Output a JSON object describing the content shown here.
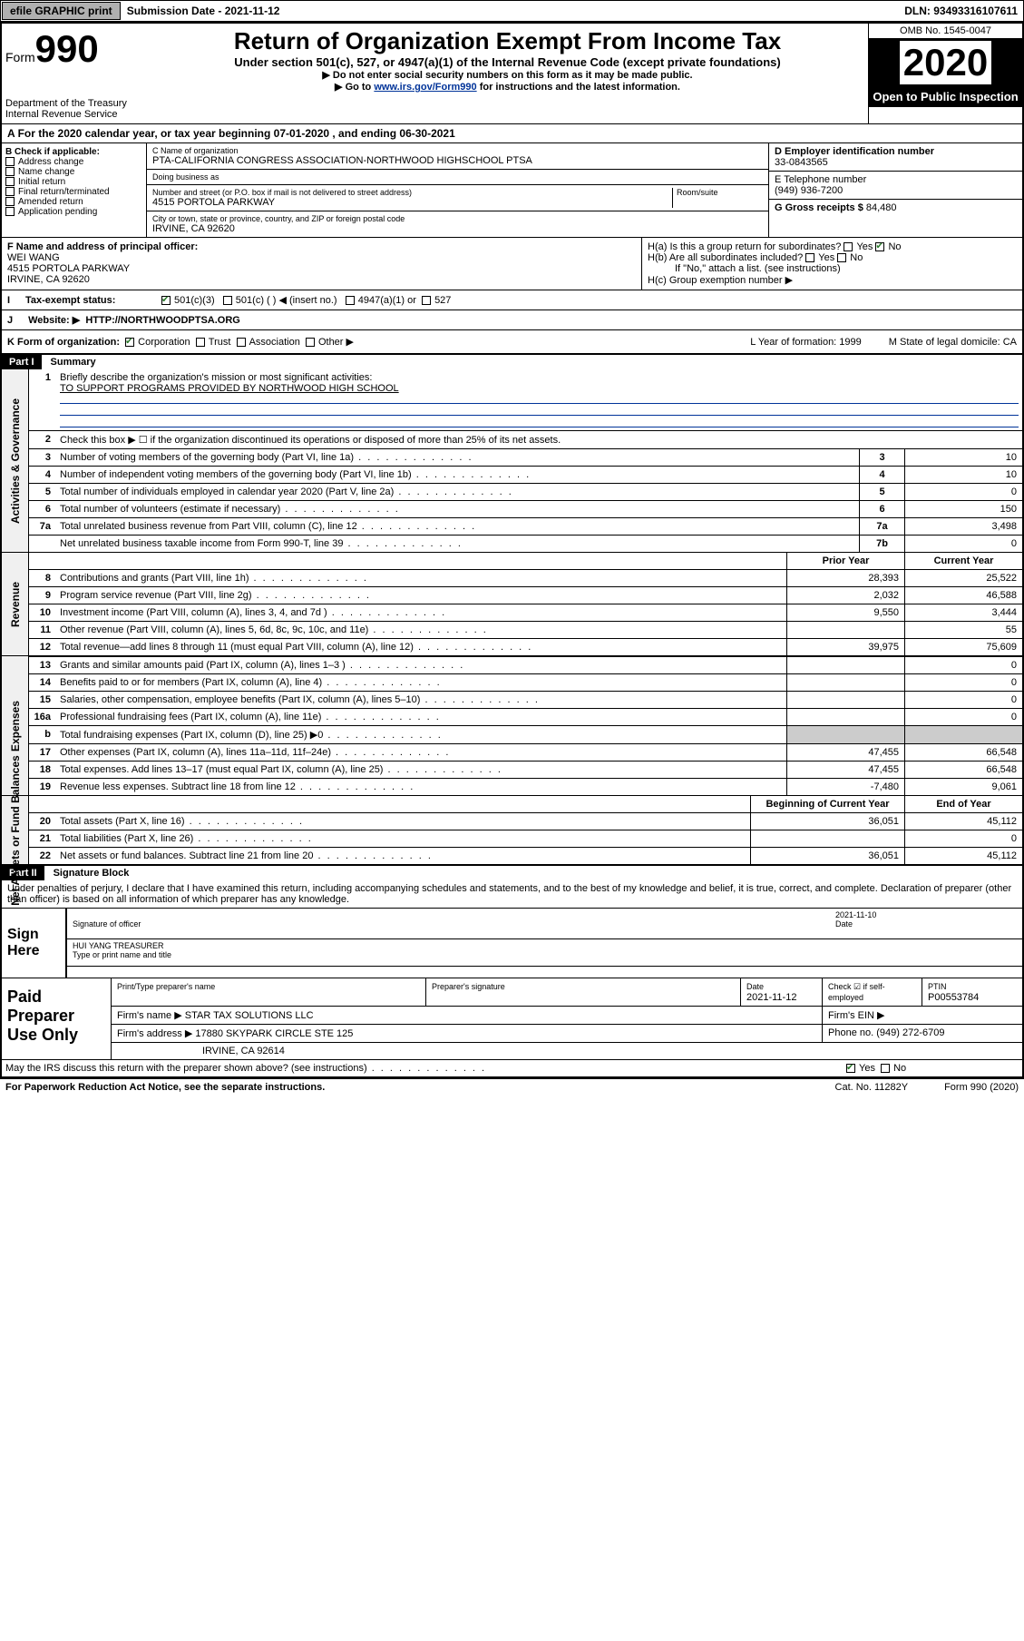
{
  "topbar": {
    "efile": "efile GRAPHIC print",
    "subdate_lbl": "Submission Date - ",
    "subdate": "2021-11-12",
    "dln_lbl": "DLN: ",
    "dln": "93493316107611"
  },
  "header": {
    "form": "Form",
    "formno": "990",
    "dept": "Department of the Treasury\nInternal Revenue Service",
    "title": "Return of Organization Exempt From Income Tax",
    "sub": "Under section 501(c), 527, or 4947(a)(1) of the Internal Revenue Code (except private foundations)",
    "nossn": "▶ Do not enter social security numbers on this form as it may be made public.",
    "goto_pre": "▶ Go to ",
    "goto_link": "www.irs.gov/Form990",
    "goto_post": " for instructions and the latest information.",
    "omb": "OMB No. 1545-0047",
    "year": "2020",
    "inspect": "Open to Public Inspection"
  },
  "period": "For the 2020 calendar year, or tax year beginning 07-01-2020    , and ending 06-30-2021",
  "B": {
    "hdr": "B Check if applicable:",
    "items": [
      "Address change",
      "Name change",
      "Initial return",
      "Final return/terminated",
      "Amended return",
      "Application pending"
    ]
  },
  "C": {
    "name_lbl": "C Name of organization",
    "name": "PTA-CALIFORNIA CONGRESS ASSOCIATION-NORTHWOOD HIGHSCHOOL PTSA",
    "dba_lbl": "Doing business as",
    "dba": "",
    "addr_lbl": "Number and street (or P.O. box if mail is not delivered to street address)",
    "room_lbl": "Room/suite",
    "addr": "4515 PORTOLA PARKWAY",
    "city_lbl": "City or town, state or province, country, and ZIP or foreign postal code",
    "city": "IRVINE, CA  92620"
  },
  "D": {
    "lbl": "D Employer identification number",
    "val": "33-0843565"
  },
  "E": {
    "lbl": "E Telephone number",
    "val": "(949) 936-7200"
  },
  "G": {
    "lbl": "G Gross receipts $ ",
    "val": "84,480"
  },
  "F": {
    "lbl": "F  Name and address of principal officer:",
    "name": "WEI WANG",
    "addr": "4515 PORTOLA PARKWAY",
    "city": "IRVINE, CA  92620"
  },
  "H": {
    "a": "H(a)  Is this a group return for subordinates?",
    "b": "H(b)  Are all subordinates included?",
    "bnote": "If \"No,\" attach a list. (see instructions)",
    "c": "H(c)  Group exemption number ▶",
    "yes": "Yes",
    "no": "No"
  },
  "I": {
    "lbl": "Tax-exempt status:",
    "opts": [
      "501(c)(3)",
      "501(c) (  ) ◀ (insert no.)",
      "4947(a)(1) or",
      "527"
    ]
  },
  "J": {
    "lbl": "Website: ▶",
    "val": "HTTP://NORTHWOODPTSA.ORG"
  },
  "K": {
    "lbl": "K Form of organization:",
    "opts": [
      "Corporation",
      "Trust",
      "Association",
      "Other ▶"
    ],
    "L": "L Year of formation: 1999",
    "M": "M State of legal domicile: CA"
  },
  "part1": {
    "bar": "Part I",
    "title": "Summary"
  },
  "summary": {
    "q1": "Briefly describe the organization's mission or most significant activities:",
    "q1a": "TO SUPPORT PROGRAMS PROVIDED BY NORTHWOOD HIGH SCHOOL",
    "q2": "Check this box ▶ ☐  if the organization discontinued its operations or disposed of more than 25% of its net assets.",
    "lines_ag": [
      {
        "n": "3",
        "d": "Number of voting members of the governing body (Part VI, line 1a)",
        "b": "3",
        "v": "10"
      },
      {
        "n": "4",
        "d": "Number of independent voting members of the governing body (Part VI, line 1b)",
        "b": "4",
        "v": "10"
      },
      {
        "n": "5",
        "d": "Total number of individuals employed in calendar year 2020 (Part V, line 2a)",
        "b": "5",
        "v": "0"
      },
      {
        "n": "6",
        "d": "Total number of volunteers (estimate if necessary)",
        "b": "6",
        "v": "150"
      },
      {
        "n": "7a",
        "d": "Total unrelated business revenue from Part VIII, column (C), line 12",
        "b": "7a",
        "v": "3,498"
      },
      {
        "n": "",
        "d": "Net unrelated business taxable income from Form 990-T, line 39",
        "b": "7b",
        "v": "0"
      }
    ],
    "hdr_prior": "Prior Year",
    "hdr_curr": "Current Year",
    "rev": [
      {
        "n": "8",
        "d": "Contributions and grants (Part VIII, line 1h)",
        "p": "28,393",
        "c": "25,522"
      },
      {
        "n": "9",
        "d": "Program service revenue (Part VIII, line 2g)",
        "p": "2,032",
        "c": "46,588"
      },
      {
        "n": "10",
        "d": "Investment income (Part VIII, column (A), lines 3, 4, and 7d )",
        "p": "9,550",
        "c": "3,444"
      },
      {
        "n": "11",
        "d": "Other revenue (Part VIII, column (A), lines 5, 6d, 8c, 9c, 10c, and 11e)",
        "p": "",
        "c": "55"
      },
      {
        "n": "12",
        "d": "Total revenue—add lines 8 through 11 (must equal Part VIII, column (A), line 12)",
        "p": "39,975",
        "c": "75,609"
      }
    ],
    "exp": [
      {
        "n": "13",
        "d": "Grants and similar amounts paid (Part IX, column (A), lines 1–3 )",
        "p": "",
        "c": "0"
      },
      {
        "n": "14",
        "d": "Benefits paid to or for members (Part IX, column (A), line 4)",
        "p": "",
        "c": "0"
      },
      {
        "n": "15",
        "d": "Salaries, other compensation, employee benefits (Part IX, column (A), lines 5–10)",
        "p": "",
        "c": "0"
      },
      {
        "n": "16a",
        "d": "Professional fundraising fees (Part IX, column (A), line 11e)",
        "p": "",
        "c": "0"
      },
      {
        "n": "b",
        "d": "Total fundraising expenses (Part IX, column (D), line 25) ▶0",
        "p": "shade",
        "c": "shade"
      },
      {
        "n": "17",
        "d": "Other expenses (Part IX, column (A), lines 11a–11d, 11f–24e)",
        "p": "47,455",
        "c": "66,548"
      },
      {
        "n": "18",
        "d": "Total expenses. Add lines 13–17 (must equal Part IX, column (A), line 25)",
        "p": "47,455",
        "c": "66,548"
      },
      {
        "n": "19",
        "d": "Revenue less expenses. Subtract line 18 from line 12",
        "p": "-7,480",
        "c": "9,061"
      }
    ],
    "hdr_beg": "Beginning of Current Year",
    "hdr_end": "End of Year",
    "net": [
      {
        "n": "20",
        "d": "Total assets (Part X, line 16)",
        "p": "36,051",
        "c": "45,112"
      },
      {
        "n": "21",
        "d": "Total liabilities (Part X, line 26)",
        "p": "",
        "c": "0"
      },
      {
        "n": "22",
        "d": "Net assets or fund balances. Subtract line 21 from line 20",
        "p": "36,051",
        "c": "45,112"
      }
    ]
  },
  "vlabels": {
    "ag": "Activities & Governance",
    "rev": "Revenue",
    "exp": "Expenses",
    "net": "Net Assets or\nFund Balances"
  },
  "part2": {
    "bar": "Part II",
    "title": "Signature Block"
  },
  "perjury": "Under penalties of perjury, I declare that I have examined this return, including accompanying schedules and statements, and to the best of my knowledge and belief, it is true, correct, and complete. Declaration of preparer (other than officer) is based on all information of which preparer has any knowledge.",
  "sign": {
    "here": "Sign Here",
    "sigoff": "Signature of officer",
    "date": "Date",
    "dateval": "2021-11-10",
    "name": "HUI YANG  TREASURER",
    "typelbl": "Type or print name and title"
  },
  "prep": {
    "lbl": "Paid Preparer Use Only",
    "h1": "Print/Type preparer's name",
    "h2": "Preparer's signature",
    "h3": "Date",
    "h3v": "2021-11-12",
    "h4": "Check ☑ if self-employed",
    "h5": "PTIN",
    "h5v": "P00553784",
    "firm_lbl": "Firm's name   ▶",
    "firm": "STAR TAX SOLUTIONS LLC",
    "ein_lbl": "Firm's EIN ▶",
    "addr_lbl": "Firm's address ▶",
    "addr": "17880 SKYPARK CIRCLE STE 125",
    "addr2": "IRVINE, CA  92614",
    "phone_lbl": "Phone no. ",
    "phone": "(949) 272-6709"
  },
  "discuss": "May the IRS discuss this return with the preparer shown above? (see instructions)",
  "footer": {
    "pra": "For Paperwork Reduction Act Notice, see the separate instructions.",
    "cat": "Cat. No. 11282Y",
    "form": "Form 990 (2020)"
  }
}
